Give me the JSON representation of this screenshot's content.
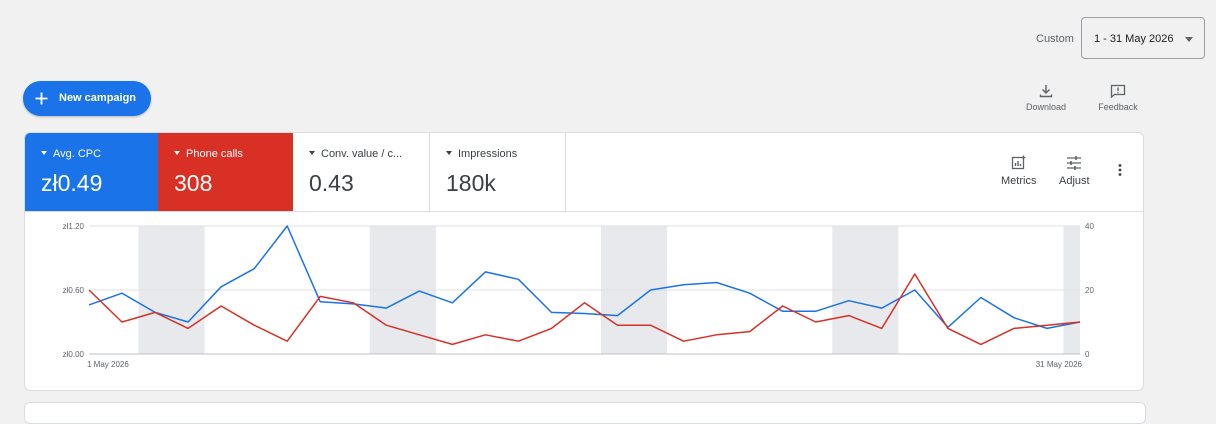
{
  "date_range": {
    "label": "Custom",
    "value": "1 - 31 May 2026"
  },
  "new_campaign": {
    "label": "New campaign"
  },
  "tools": {
    "download": "Download",
    "feedback": "Feedback"
  },
  "scorecards": [
    {
      "name": "Avg. CPC",
      "value": "zł0.49",
      "color": "#1a73e8"
    },
    {
      "name": "Phone calls",
      "value": "308",
      "color": "#d93025"
    },
    {
      "name": "Conv. value / c...",
      "value": "0.43"
    },
    {
      "name": "Impressions",
      "value": "180k"
    }
  ],
  "card_tools": {
    "metrics": "Metrics",
    "adjust": "Adjust"
  },
  "chart_data": {
    "type": "line",
    "x": [
      "1 May 2026",
      "2",
      "3",
      "4",
      "5",
      "6",
      "7",
      "8",
      "9",
      "10",
      "11",
      "12",
      "13",
      "14",
      "15",
      "16",
      "17",
      "18",
      "19",
      "20",
      "21",
      "22",
      "23",
      "24",
      "25",
      "26",
      "27",
      "28",
      "29",
      "30",
      "31 May 2026"
    ],
    "x_tick_labels": [
      "1 May 2026",
      "31 May 2026"
    ],
    "y_left": {
      "ticks": [
        "zł0.00",
        "zł0.60",
        "zł1.20"
      ],
      "range": [
        0,
        1.2
      ]
    },
    "y_right": {
      "ticks": [
        "0",
        "20",
        "40"
      ],
      "range": [
        0,
        40
      ]
    },
    "weekend_bands": [
      [
        3,
        4
      ],
      [
        10,
        11
      ],
      [
        17,
        18
      ],
      [
        24,
        25
      ],
      [
        31,
        31
      ]
    ],
    "series": [
      {
        "name": "Avg. CPC",
        "axis": "left",
        "color": "#1a73e8",
        "values": [
          0.46,
          0.57,
          0.39,
          0.3,
          0.63,
          0.8,
          1.2,
          0.49,
          0.47,
          0.43,
          0.59,
          0.48,
          0.77,
          0.7,
          0.39,
          0.38,
          0.36,
          0.6,
          0.65,
          0.67,
          0.57,
          0.4,
          0.4,
          0.5,
          0.43,
          0.6,
          0.25,
          0.53,
          0.34,
          0.24,
          0.3
        ]
      },
      {
        "name": "Phone calls",
        "axis": "right",
        "color": "#d93025",
        "values": [
          20,
          10,
          13,
          8,
          15,
          9,
          4,
          18,
          16,
          9,
          6,
          3,
          6,
          4,
          8,
          16,
          9,
          9,
          4,
          6,
          7,
          15,
          10,
          12,
          8,
          25,
          8,
          3,
          8,
          9,
          10
        ]
      }
    ],
    "grid": true
  }
}
